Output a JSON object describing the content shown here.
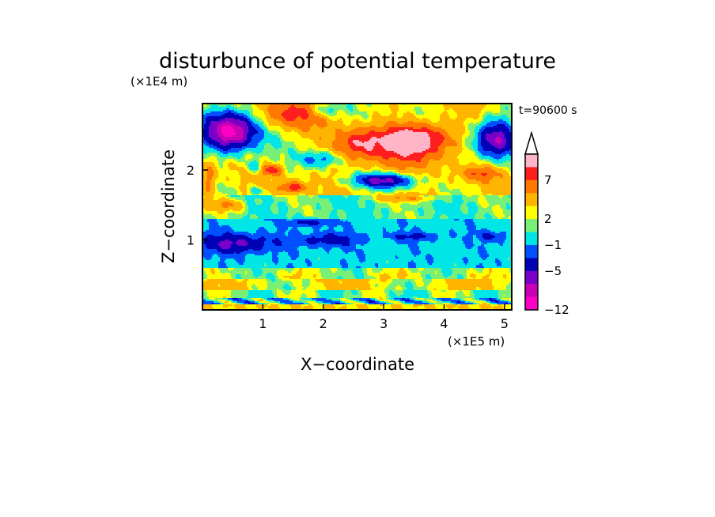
{
  "chart_data": {
    "type": "heatmap",
    "title": "disturbunce of potential temperature",
    "time_label": "t=90600 s",
    "xlabel": "X−coordinate",
    "ylabel": "Z−coordinate",
    "x_unit": "(×1E5 m)",
    "y_unit": "(×1E4 m)",
    "xlim": [
      0,
      5.12
    ],
    "ylim": [
      0,
      2.95
    ],
    "x_ticks": [
      {
        "value": 1,
        "label": "1"
      },
      {
        "value": 2,
        "label": "2"
      },
      {
        "value": 3,
        "label": "3"
      },
      {
        "value": 4,
        "label": "4"
      },
      {
        "value": 5,
        "label": "5"
      }
    ],
    "y_ticks": [
      {
        "value": 1,
        "label": "1"
      },
      {
        "value": 2,
        "label": "2"
      }
    ],
    "colorbar": {
      "labels": [
        {
          "value": 7,
          "label": "7"
        },
        {
          "value": 2,
          "label": "2"
        },
        {
          "value": -1,
          "label": "−1"
        },
        {
          "value": -5,
          "label": "−5"
        },
        {
          "value": -12,
          "label": "−12"
        }
      ],
      "colors_top_to_bottom": [
        "#ffb4c8",
        "#ff1e1e",
        "#ff7800",
        "#ffb400",
        "#ffff00",
        "#78f078",
        "#00e6e6",
        "#0050ff",
        "#0000b4",
        "#7800c8",
        "#c800b4",
        "#ff00c8"
      ],
      "extend": "max"
    },
    "field_levels": [
      -12,
      -5,
      -1,
      2,
      7
    ],
    "features": [
      {
        "x": 3.55,
        "z": 2.45,
        "value": 10
      },
      {
        "x": 0.45,
        "z": 2.5,
        "value": -10
      },
      {
        "x": 4.9,
        "z": 2.45,
        "value": -9
      },
      {
        "x": 3.0,
        "z": 1.85,
        "value": -5
      },
      {
        "x": 0.6,
        "z": 0.95,
        "value": -5
      },
      {
        "x": 1.5,
        "z": 1.75,
        "value": 7
      }
    ]
  }
}
